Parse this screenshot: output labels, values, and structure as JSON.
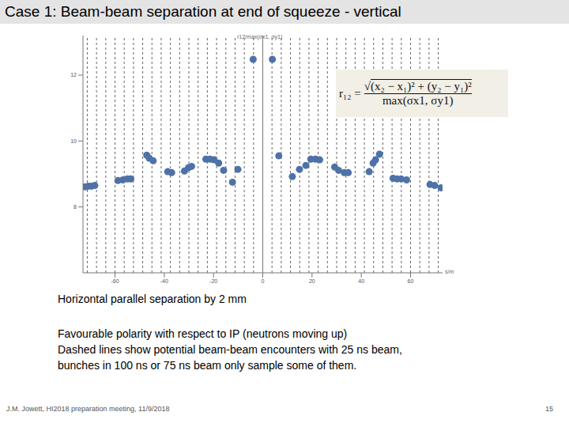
{
  "slide": {
    "title": "Case 1: Beam-beam separation at end of squeeze - vertical",
    "notes": [
      "Horizontal parallel separation by 2 mm",
      "Favourable polarity with respect to IP (neutrons moving up)",
      "Dashed lines show potential beam-beam encounters with 25 ns beam,",
      "bunches in 100 ns or 75 ns beam only sample some of them."
    ],
    "footer": "J.M. Jowett, HI2018 preparation meeting, 11/9/2018",
    "page": "15",
    "formula": {
      "lhs": "r₁₂ =",
      "numerator": "√(x₂ − x₁)² + (y₂ − y₁)²",
      "denominator": "max(σx1, σy1)"
    }
  },
  "chart_data": {
    "type": "scatter",
    "y_label": "r12/max(σx1, σy1)",
    "x_label": "s/m",
    "color": "#4e72a8",
    "marker": "circle",
    "x": [
      -72.1,
      -70.8,
      -69.5,
      -68.2,
      -58.8,
      -56.8,
      -54.9,
      -53.6,
      -47.1,
      -46.1,
      -44.5,
      -38.6,
      -37.0,
      -31.8,
      -30.2,
      -28.9,
      -23.1,
      -21.4,
      -19.8,
      -17.9,
      -15.9,
      -12.3,
      -10.1,
      -3.9,
      3.9,
      6.5,
      12.0,
      14.9,
      17.5,
      19.5,
      21.4,
      23.1,
      29.2,
      30.8,
      33.1,
      34.7,
      43.2,
      44.8,
      45.8,
      47.4,
      52.9,
      54.5,
      56.2,
      58.4,
      67.9,
      69.8,
      72.4
    ],
    "values": [
      8.61,
      8.63,
      8.63,
      8.65,
      8.8,
      8.82,
      8.85,
      8.85,
      9.57,
      9.48,
      9.4,
      9.07,
      9.04,
      9.09,
      9.19,
      9.23,
      9.45,
      9.45,
      9.43,
      9.33,
      9.11,
      8.75,
      9.14,
      12.48,
      12.48,
      9.55,
      8.92,
      9.14,
      9.26,
      9.45,
      9.45,
      9.43,
      9.21,
      9.11,
      9.04,
      9.04,
      9.07,
      9.33,
      9.43,
      9.6,
      8.87,
      8.85,
      8.85,
      8.82,
      8.68,
      8.65,
      8.58
    ],
    "xlim": [
      -73,
      73
    ],
    "ylim": [
      6,
      13.2
    ],
    "xticks": [
      -60,
      -40,
      -20,
      0,
      20,
      40,
      60
    ],
    "yticks": [
      8,
      10,
      12
    ],
    "encounters": [
      -71.25,
      -67.5,
      -63.75,
      -60,
      -56.25,
      -52.5,
      -48.75,
      -45,
      -41.25,
      -37.5,
      -33.75,
      -30,
      -26.25,
      -22.5,
      -18.75,
      -15,
      -11.25,
      -7.5,
      -3.75,
      0,
      3.75,
      7.5,
      11.25,
      15,
      18.75,
      22.5,
      26.25,
      30,
      33.75,
      37.5,
      41.25,
      45,
      48.75,
      52.5,
      56.25,
      60,
      63.75,
      67.5,
      71.25
    ]
  }
}
